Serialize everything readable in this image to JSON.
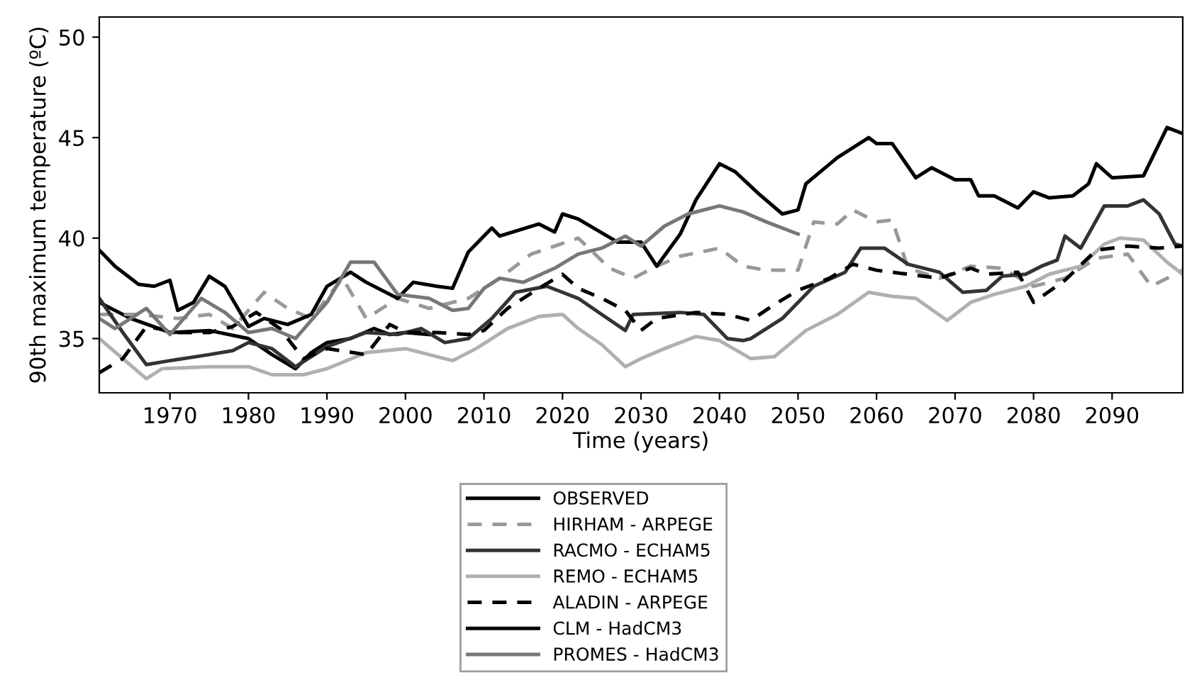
{
  "chart_data": {
    "type": "line",
    "xlabel": "Time (years)",
    "ylabel": "90th maximum temperature (ºC)",
    "xlim": [
      1961,
      2099
    ],
    "xticks": [
      1970,
      1980,
      1990,
      2000,
      2010,
      2020,
      2030,
      2040,
      2050,
      2060,
      2070,
      2080,
      2090
    ],
    "ylim": [
      32.3,
      51
    ],
    "yticks": [
      35,
      40,
      45,
      50
    ],
    "grid": false,
    "legend": "bottom",
    "marker": "none",
    "series": [
      {
        "name": "OBSERVED",
        "color": "#000000",
        "line_style": "solid",
        "x": [
          1961,
          1965,
          1970,
          1975,
          1980,
          1983,
          1986,
          1988,
          1990,
          1993,
          1996,
          1998,
          2000,
          2003
        ],
        "values": [
          36.8,
          36.0,
          35.3,
          35.4,
          35.0,
          34.2,
          33.5,
          34.3,
          34.8,
          35.0,
          35.5,
          35.2,
          35.3,
          35.2
        ]
      },
      {
        "name": "HIRHAM - ARPEGE",
        "color": "#999999",
        "line_style": "dashed",
        "x": [
          1961,
          1966,
          1971,
          1975,
          1978,
          1982,
          1985,
          1988,
          1992,
          1995,
          1999,
          2003,
          2008,
          2012,
          2016,
          2019,
          2022,
          2026,
          2029,
          2032,
          2035,
          2040,
          2043,
          2046,
          2050,
          2052,
          2055,
          2057,
          2060,
          2062,
          2064,
          2068,
          2072,
          2076,
          2080,
          2084,
          2088,
          2092,
          2095,
          2099
        ],
        "values": [
          36.2,
          36.2,
          36.0,
          36.2,
          35.5,
          37.3,
          36.5,
          36.0,
          38.0,
          36.0,
          37.0,
          36.5,
          37.0,
          38.0,
          39.2,
          39.6,
          40.0,
          38.5,
          38.0,
          38.6,
          39.1,
          39.5,
          38.6,
          38.4,
          38.4,
          40.8,
          40.7,
          41.4,
          40.8,
          40.9,
          38.5,
          38.0,
          38.6,
          38.5,
          37.6,
          38.0,
          39.0,
          39.2,
          37.6,
          38.4
        ]
      },
      {
        "name": "RACMO - ECHAM5",
        "color": "#333333",
        "line_style": "solid",
        "x": [
          1961,
          1964,
          1967,
          1970,
          1975,
          1978,
          1980,
          1983,
          1986,
          1990,
          1995,
          1999,
          2002,
          2005,
          2008,
          2011,
          2014,
          2018,
          2020,
          2022,
          2025,
          2028,
          2029,
          2035,
          2038,
          2041,
          2043,
          2044,
          2048,
          2052,
          2056,
          2058,
          2061,
          2064,
          2068,
          2071,
          2074,
          2076,
          2079,
          2081,
          2083,
          2084,
          2086,
          2089,
          2092,
          2094,
          2096,
          2098,
          2099
        ],
        "values": [
          37.0,
          35.3,
          33.7,
          33.9,
          34.2,
          34.4,
          34.8,
          34.5,
          33.6,
          34.6,
          35.3,
          35.2,
          35.5,
          34.8,
          35.0,
          36.0,
          37.3,
          37.6,
          37.3,
          37.0,
          36.2,
          35.4,
          36.2,
          36.3,
          36.2,
          35.0,
          34.9,
          35.0,
          36.0,
          37.6,
          38.3,
          39.5,
          39.5,
          38.7,
          38.3,
          37.3,
          37.4,
          38.1,
          38.2,
          38.6,
          38.9,
          40.1,
          39.5,
          41.6,
          41.6,
          41.9,
          41.2,
          39.7,
          39.6
        ]
      },
      {
        "name": "REMO - ECHAM5",
        "color": "#b0b0b0",
        "line_style": "solid",
        "x": [
          1961,
          1964,
          1967,
          1969,
          1975,
          1980,
          1983,
          1987,
          1990,
          1995,
          2000,
          2003,
          2006,
          2009,
          2013,
          2017,
          2020,
          2022,
          2025,
          2028,
          2030,
          2033,
          2037,
          2040,
          2044,
          2047,
          2051,
          2055,
          2059,
          2062,
          2065,
          2069,
          2072,
          2075,
          2079,
          2082,
          2086,
          2089,
          2091,
          2094,
          2097,
          2099
        ],
        "values": [
          35.0,
          34.0,
          33.0,
          33.5,
          33.6,
          33.6,
          33.2,
          33.2,
          33.5,
          34.3,
          34.5,
          34.2,
          33.9,
          34.5,
          35.5,
          36.1,
          36.2,
          35.5,
          34.7,
          33.6,
          34.0,
          34.5,
          35.1,
          34.9,
          34.0,
          34.1,
          35.4,
          36.2,
          37.3,
          37.1,
          37.0,
          35.9,
          36.8,
          37.2,
          37.6,
          38.2,
          38.6,
          39.7,
          40.0,
          39.9,
          38.8,
          38.2
        ]
      },
      {
        "name": "ALADIN - ARPEGE",
        "color": "#000000",
        "line_style": "dashed",
        "x": [
          1961,
          1964,
          1967,
          1971,
          1975,
          1978,
          1981,
          1984,
          1987,
          1990,
          1995,
          1998,
          2000,
          2004,
          2008,
          2010,
          2013,
          2017,
          2020,
          2022,
          2025,
          2028,
          2030,
          2032,
          2037,
          2041,
          2044,
          2047,
          2050,
          2054,
          2057,
          2060,
          2064,
          2068,
          2072,
          2074,
          2078,
          2080,
          2084,
          2088,
          2092,
          2096,
          2099
        ],
        "values": [
          33.3,
          34.0,
          35.6,
          35.3,
          35.3,
          35.6,
          36.3,
          35.5,
          34.0,
          34.5,
          34.2,
          35.7,
          35.3,
          35.3,
          35.2,
          35.4,
          36.5,
          37.5,
          38.2,
          37.5,
          37.0,
          36.4,
          35.4,
          36.0,
          36.3,
          36.2,
          35.9,
          36.7,
          37.4,
          38.0,
          38.7,
          38.4,
          38.2,
          38.0,
          38.5,
          38.2,
          38.3,
          36.8,
          37.9,
          39.4,
          39.6,
          39.5,
          39.6
        ]
      },
      {
        "name": "CLM - HadCM3",
        "color": "#000000",
        "line_style": "solid",
        "x": [
          1961,
          1963,
          1966,
          1968,
          1970,
          1971,
          1973,
          1975,
          1977,
          1980,
          1982,
          1985,
          1988,
          1990,
          1993,
          1995,
          1999,
          2001,
          2004,
          2006,
          2008,
          2011,
          2012,
          2017,
          2019,
          2020,
          2022,
          2027,
          2030,
          2032,
          2035,
          2037,
          2040,
          2042,
          2045,
          2048,
          2050,
          2051,
          2055,
          2059,
          2060,
          2062,
          2065,
          2067,
          2070,
          2072,
          2073,
          2075,
          2078,
          2080,
          2082,
          2085,
          2087,
          2088,
          2090,
          2094,
          2097,
          2099
        ],
        "values": [
          39.4,
          38.6,
          37.7,
          37.6,
          37.9,
          36.4,
          36.8,
          38.1,
          37.6,
          35.6,
          36.0,
          35.7,
          36.2,
          37.6,
          38.3,
          37.8,
          37.0,
          37.8,
          37.6,
          37.5,
          39.3,
          40.5,
          40.1,
          40.7,
          40.3,
          41.2,
          40.95,
          39.8,
          39.8,
          38.6,
          40.2,
          41.9,
          43.7,
          43.3,
          42.2,
          41.2,
          41.4,
          42.7,
          44.0,
          45.0,
          44.7,
          44.7,
          43.0,
          43.5,
          42.9,
          42.9,
          42.1,
          42.1,
          41.5,
          42.3,
          42.0,
          42.1,
          42.7,
          43.7,
          43.0,
          43.1,
          45.5,
          45.2
        ]
      },
      {
        "name": "PROMES - HadCM3",
        "color": "#777777",
        "line_style": "solid",
        "x": [
          1961,
          1963,
          1967,
          1970,
          1974,
          1977,
          1980,
          1983,
          1986,
          1990,
          1993,
          1996,
          1999,
          2003,
          2006,
          2008,
          2010,
          2012,
          2015,
          2019,
          2022,
          2025,
          2028,
          2030,
          2033,
          2036,
          2040,
          2043,
          2046,
          2050
        ],
        "values": [
          36.0,
          35.5,
          36.5,
          35.2,
          37.0,
          36.3,
          35.3,
          35.5,
          35.0,
          36.8,
          38.8,
          38.8,
          37.2,
          37.0,
          36.4,
          36.5,
          37.5,
          38.0,
          37.8,
          38.5,
          39.2,
          39.5,
          40.1,
          39.6,
          40.6,
          41.2,
          41.6,
          41.3,
          40.8,
          40.2
        ]
      }
    ]
  }
}
